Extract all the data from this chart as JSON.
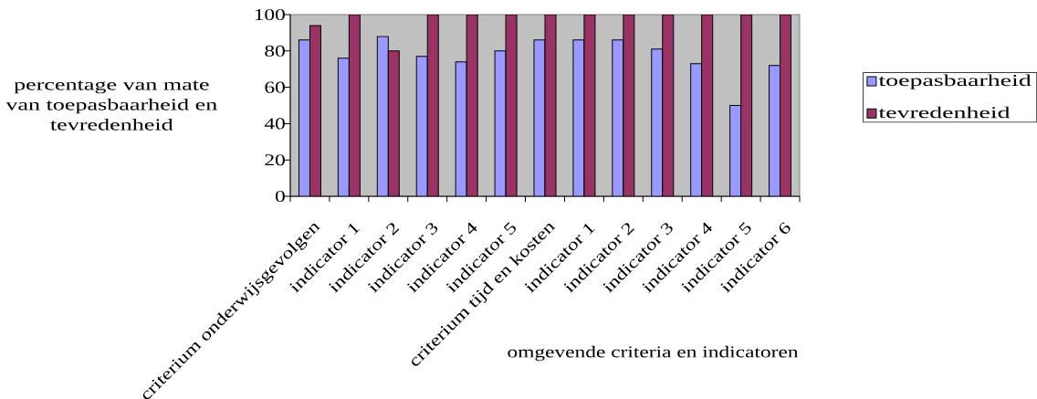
{
  "chart_data": {
    "type": "bar",
    "categories": [
      "criterium onderwijsgevolgen",
      "indicator 1",
      "indicator 2",
      "indicator 3",
      "indicator 4",
      "indicator 5",
      "criterium tijd en kosten",
      "indicator 1",
      "indicator 2",
      "indicator 3",
      "indicator 4",
      "indicator 5",
      "indicator 6"
    ],
    "series": [
      {
        "name": "toepasbaarheid",
        "color": "#9999ff",
        "values": [
          86,
          76,
          88,
          77,
          74,
          80,
          86,
          86,
          86,
          81,
          73,
          50,
          72
        ]
      },
      {
        "name": "tevredenheid",
        "color": "#993366",
        "values": [
          94,
          100,
          80,
          100,
          100,
          100,
          100,
          100,
          100,
          100,
          100,
          100,
          100
        ]
      }
    ],
    "xlabel": "omgevende criteria en indicatoren",
    "ylabel": "percentage van mate van toepasbaarheid en tevredenheid",
    "ylim": [
      0,
      100
    ],
    "yticks": [
      0,
      20,
      40,
      60,
      80,
      100
    ],
    "legend": "right"
  }
}
